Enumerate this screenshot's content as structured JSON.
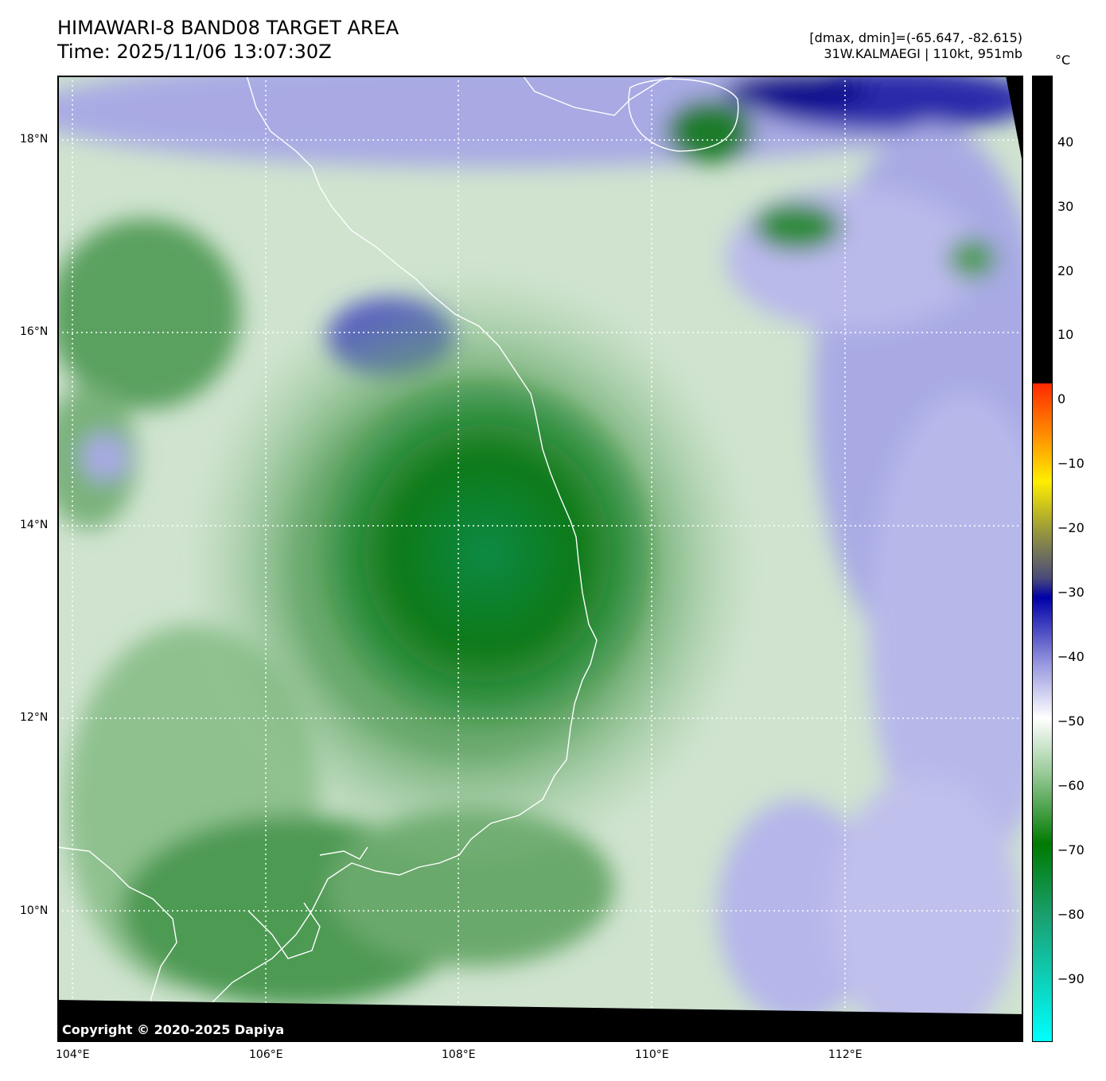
{
  "header": {
    "title_line1": "HIMAWARI-8 BAND08 TARGET AREA",
    "title_line2": "Time: 2025/11/06 13:07:30Z",
    "info_line1": "[dmax, dmin]=(-65.647, -82.615)",
    "info_line2": "31W.KALMAEGI | 110kt, 951mb"
  },
  "colorbar": {
    "unit": "°C",
    "ticks": [
      "40",
      "30",
      "20",
      "10",
      "0",
      "−10",
      "−20",
      "−30",
      "−40",
      "−50",
      "−60",
      "−70",
      "−80",
      "−90"
    ],
    "range": [
      -100,
      49
    ]
  },
  "axes": {
    "lat_ticks": [
      "18°N",
      "16°N",
      "14°N",
      "12°N",
      "10°N"
    ],
    "lon_ticks": [
      "104°E",
      "106°E",
      "108°E",
      "110°E",
      "112°E"
    ],
    "grid": "dotted"
  },
  "storm": {
    "name": "31W.KALMAEGI",
    "intensity_kt": 110,
    "pressure_mb": 951
  },
  "copyright": "Copyright © 2020-2025 Dapiya",
  "colors": {
    "deep_green": "#0b7a1a",
    "light_green": "#cfe7cf",
    "lavender": "#a7a8e6",
    "blue": "#4646c8",
    "navy": "#0b0b8c",
    "coast": "#ffffff"
  }
}
